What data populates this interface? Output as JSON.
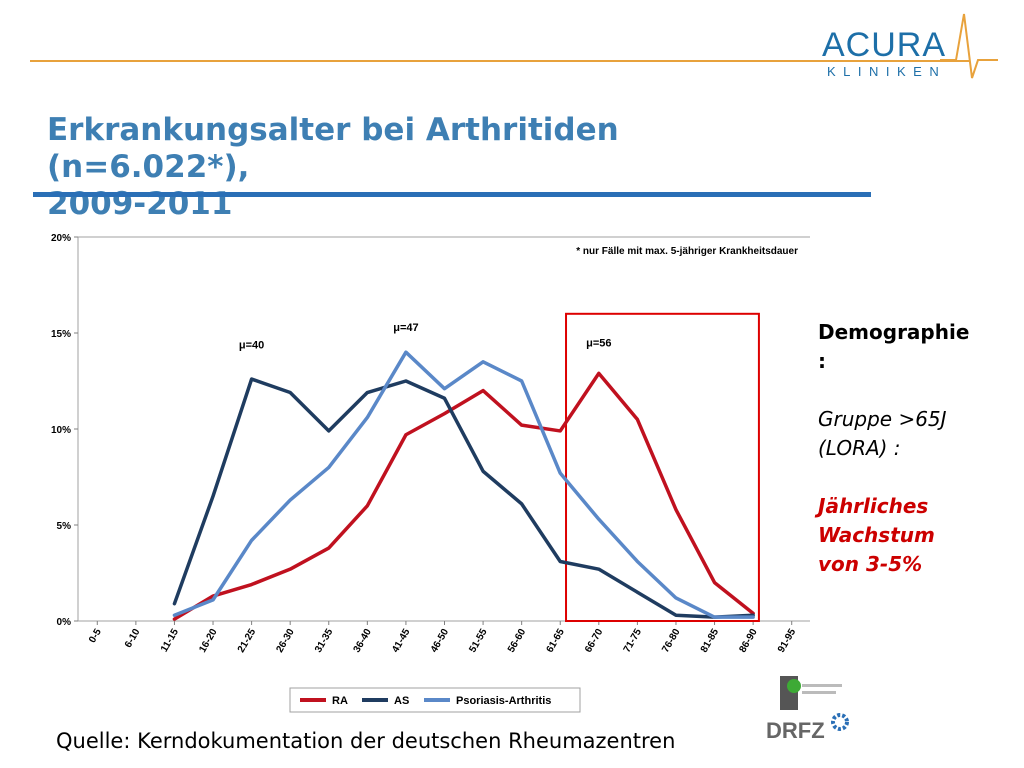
{
  "brand": {
    "name_top": "ACURA",
    "name_bottom": "KLINIKEN",
    "accent_color": "#1d6fa8",
    "line_color": "#e8a23c"
  },
  "slide": {
    "title_line1": "Erkrankungsalter bei Arthritiden (n=6.022*),",
    "title_line2": "2009-2011",
    "source": "Quelle: Kerndokumentation der deutschen Rheumazentren"
  },
  "side_panel": {
    "heading_line1": "Demographie",
    "heading_line2": ":",
    "group_line1": "Gruppe >65J",
    "group_line2": "(LORA) :",
    "growth_line1": "Jährliches",
    "growth_line2": "Wachstum",
    "growth_line3": "von 3-5%",
    "growth_color": "#cc0000"
  },
  "chart_data": {
    "type": "line",
    "categories": [
      "0-5",
      "6-10",
      "11-15",
      "16-20",
      "21-25",
      "26-30",
      "31-35",
      "36-40",
      "41-45",
      "46-50",
      "51-55",
      "56-60",
      "61-65",
      "66-70",
      "71-75",
      "76-80",
      "81-85",
      "86-90",
      "91-95"
    ],
    "ylim": [
      0,
      20
    ],
    "yticks": [
      "0%",
      "5%",
      "10%",
      "15%",
      "20%"
    ],
    "note": "* nur Fälle mit max. 5-jähriger Krankheitsdauer",
    "series": [
      {
        "name": "RA",
        "color": "#c0111f",
        "values": [
          null,
          null,
          0.1,
          1.3,
          1.9,
          2.7,
          3.8,
          6.0,
          9.7,
          10.8,
          12.0,
          10.2,
          9.9,
          12.9,
          10.5,
          5.8,
          2.0,
          0.4,
          null
        ]
      },
      {
        "name": "AS",
        "color": "#1f3c60",
        "values": [
          null,
          null,
          0.9,
          6.5,
          12.6,
          11.9,
          9.9,
          11.9,
          12.5,
          11.6,
          7.8,
          6.1,
          3.1,
          2.7,
          1.5,
          0.3,
          0.2,
          0.3,
          null
        ]
      },
      {
        "name": "Psoriasis-Arthritis",
        "color": "#5a88c8",
        "values": [
          null,
          null,
          0.3,
          1.1,
          4.2,
          6.3,
          8.0,
          10.6,
          14.0,
          12.1,
          13.5,
          12.5,
          7.7,
          5.3,
          3.1,
          1.2,
          0.2,
          0.2,
          null
        ]
      }
    ],
    "annotations": [
      {
        "text": "μ=40",
        "x": "21-25",
        "y": 14.2
      },
      {
        "text": "μ=47",
        "x": "41-45",
        "y": 15.1
      },
      {
        "text": "μ=56",
        "x": "66-70",
        "y": 14.3
      }
    ],
    "highlight": {
      "from": "61-65",
      "to": "86-90",
      "ylim": [
        0,
        16
      ],
      "color": "#dd0000"
    },
    "legend_position": "bottom-center",
    "grid": false
  }
}
